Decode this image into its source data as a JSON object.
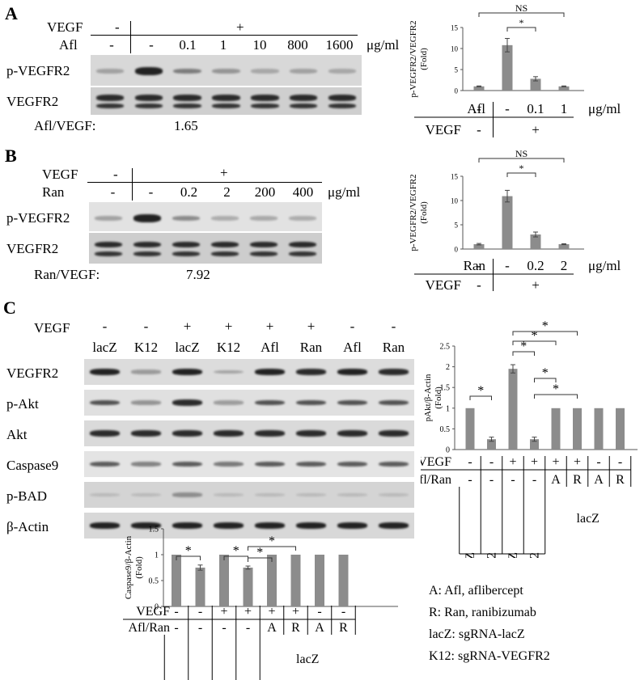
{
  "panels": [
    {
      "letter": "A",
      "rows": {
        "vegf": {
          "label": "VEGF",
          "cells": [
            "-",
            "+"
          ]
        },
        "drug": {
          "label": "Afl",
          "cells": [
            "-",
            "-",
            "0.1",
            "1",
            "10",
            "800",
            "1600"
          ],
          "unit": "μg/ml"
        }
      },
      "blots": [
        "p-VEGFR2",
        "VEGFR2"
      ],
      "ratio": {
        "label": "Afl/VEGF:",
        "value": "1.65"
      },
      "pVEGFR2": [
        0.15,
        1.0,
        0.35,
        0.22,
        0.12,
        0.15,
        0.12
      ]
    },
    {
      "letter": "B",
      "rows": {
        "vegf": {
          "label": "VEGF",
          "cells": [
            "-",
            "+"
          ]
        },
        "drug": {
          "label": "Ran",
          "cells": [
            "-",
            "-",
            "0.2",
            "2",
            "200",
            "400"
          ],
          "unit": "μg/ml"
        }
      },
      "blots": [
        "p-VEGFR2",
        "VEGFR2"
      ],
      "ratio": {
        "label": "Ran/VEGF:",
        "value": "7.92"
      },
      "pVEGFR2": [
        0.18,
        1.0,
        0.3,
        0.12,
        0.14,
        0.12
      ]
    },
    {
      "letter": "C",
      "rows": {
        "vegf": {
          "label": "VEGF",
          "cells": [
            "-",
            "-",
            "+",
            "+",
            "+",
            "+",
            "-",
            "-"
          ]
        },
        "sg": {
          "cells": [
            "lacZ",
            "K12",
            "lacZ",
            "K12",
            "Afl",
            "Ran",
            "Afl",
            "Ran"
          ]
        }
      },
      "blots": [
        "VEGFR2",
        "p-Akt",
        "Akt",
        "Caspase9",
        "p-BAD",
        "β-Actin"
      ]
    }
  ],
  "legend_lines": [
    "A: Afl, aflibercept",
    "R: Ran, ranibizumab",
    "lacZ: sgRNA-lacZ",
    "K12: sgRNA-VEGFR2"
  ],
  "chart_data": [
    {
      "type": "bar",
      "ylabel": "p-VEGFR2/VEGFR2 (Fold)",
      "ylim": [
        0,
        15
      ],
      "yticks": [
        0,
        5,
        10,
        15
      ],
      "values": [
        1,
        10.8,
        2.8,
        1
      ],
      "errors": [
        0.1,
        1.6,
        0.5,
        0.1
      ],
      "row_labels": {
        "drug": "Afl",
        "vegf": "VEGF"
      },
      "drug_cells": [
        "-",
        "-",
        "0.1",
        "1"
      ],
      "vegf_cells": [
        "-",
        "+"
      ],
      "unit": "μg/ml",
      "annotations": [
        {
          "text": "NS",
          "from": 0,
          "to": 3
        },
        {
          "text": "*",
          "from": 1,
          "to": 2
        }
      ],
      "color": "#8c8c8c"
    },
    {
      "type": "bar",
      "ylabel": "p-VEGFR2/VEGFR2 (Fold)",
      "ylim": [
        0,
        15
      ],
      "yticks": [
        0,
        5,
        10,
        15
      ],
      "values": [
        1,
        10.9,
        3,
        1
      ],
      "errors": [
        0.15,
        1.2,
        0.5,
        0.1
      ],
      "row_labels": {
        "drug": "Ran",
        "vegf": "VEGF"
      },
      "drug_cells": [
        "-",
        "-",
        "0.2",
        "2"
      ],
      "vegf_cells": [
        "-",
        "+"
      ],
      "unit": "μg/ml",
      "annotations": [
        {
          "text": "NS",
          "from": 0,
          "to": 3
        },
        {
          "text": "*",
          "from": 1,
          "to": 2
        }
      ],
      "color": "#8c8c8c"
    },
    {
      "type": "bar",
      "ylabel": "pAkt/β-Actin (Fold)",
      "ylim": [
        0,
        2.5
      ],
      "yticks": [
        0,
        0.5,
        1,
        1.5,
        2,
        2.5
      ],
      "values": [
        1,
        0.25,
        1.95,
        0.25,
        1,
        1,
        1,
        1
      ],
      "errors": [
        0,
        0.05,
        0.1,
        0.05,
        0,
        0,
        0,
        0
      ],
      "row_labels": {
        "drug": "Afl/Ran",
        "vegf": "VEGF"
      },
      "vegf_cells": [
        "-",
        "-",
        "+",
        "+",
        "+",
        "+",
        "-",
        "-"
      ],
      "drug_cells": [
        "-",
        "-",
        "-",
        "-",
        "A",
        "R",
        "A",
        "R"
      ],
      "sg_cells": [
        "lacZ",
        "K12",
        "lacZ",
        "K12"
      ],
      "sg_group": "lacZ",
      "annotations": [
        {
          "text": "*",
          "from": 0,
          "to": 1
        },
        {
          "text": "*",
          "from": 2,
          "to": 3
        },
        {
          "text": "*",
          "from": 2,
          "to": 4
        },
        {
          "text": "*",
          "from": 2,
          "to": 5
        },
        {
          "text": "*",
          "from": 3,
          "to": 4
        },
        {
          "text": "*",
          "from": 3,
          "to": 5
        }
      ],
      "color": "#8c8c8c"
    },
    {
      "type": "bar",
      "ylabel": "Caspase9/β-Actin (Fold)",
      "ylim": [
        0,
        1.5
      ],
      "yticks": [
        0,
        0.5,
        1,
        1.5
      ],
      "values": [
        1,
        0.75,
        1,
        0.75,
        1,
        1,
        1,
        1
      ],
      "errors": [
        0,
        0.05,
        0,
        0.03,
        0,
        0,
        0,
        0
      ],
      "row_labels": {
        "drug": "Afl/Ran",
        "vegf": "VEGF"
      },
      "vegf_cells": [
        "-",
        "-",
        "+",
        "+",
        "+",
        "+",
        "-",
        "-"
      ],
      "drug_cells": [
        "-",
        "-",
        "-",
        "-",
        "A",
        "R",
        "A",
        "R"
      ],
      "sg_cells": [
        "lacZ",
        "K12",
        "lacZ",
        "K12"
      ],
      "sg_group": "lacZ",
      "annotations": [
        {
          "text": "*",
          "from": 0,
          "to": 1
        },
        {
          "text": "*",
          "from": 2,
          "to": 3
        },
        {
          "text": "*",
          "from": 3,
          "to": 4
        },
        {
          "text": "*",
          "from": 3,
          "to": 5
        }
      ],
      "color": "#8c8c8c"
    }
  ]
}
